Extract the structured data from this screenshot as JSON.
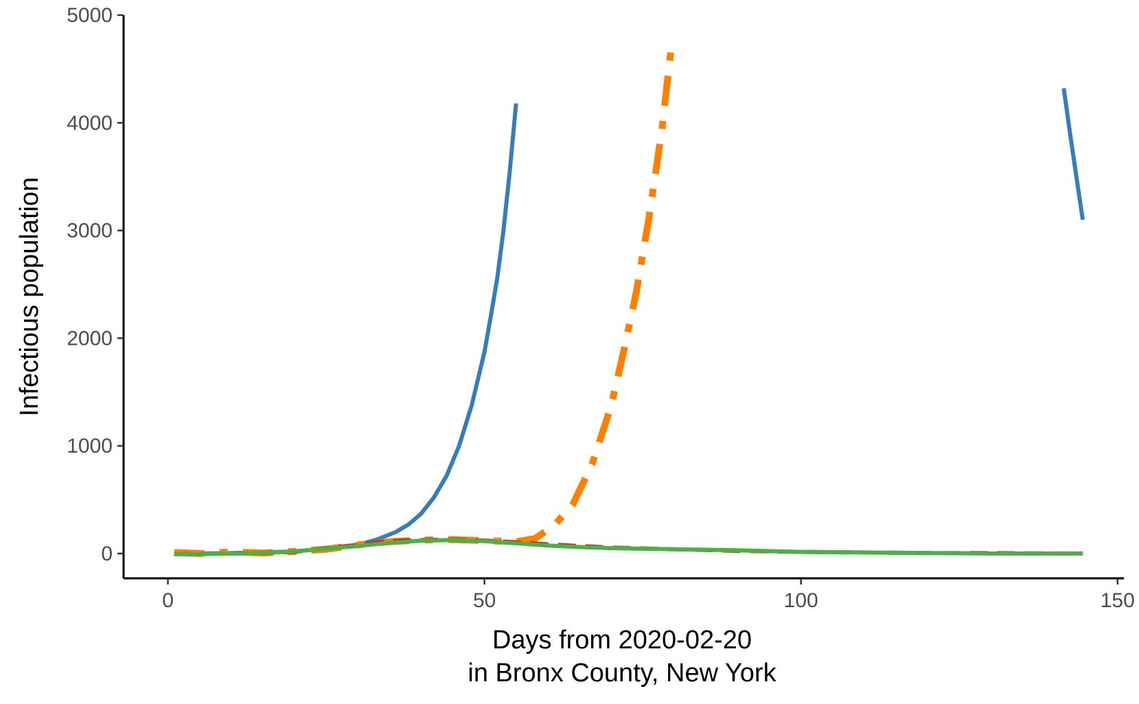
{
  "chart_data": {
    "type": "line",
    "title": "",
    "xlabel_line1": "Days from 2020-02-20",
    "xlabel_line2": "in Bronx County, New York",
    "ylabel": "Infectious population",
    "xlim": [
      -7,
      151
    ],
    "ylim": [
      -230,
      5000
    ],
    "x_ticks": [
      0,
      50,
      100,
      150
    ],
    "y_ticks": [
      0,
      1000,
      2000,
      3000,
      4000,
      5000
    ],
    "grid": false,
    "legend": "none",
    "series": [
      {
        "color": "#377EB8",
        "dash": "solid",
        "segments": [
          {
            "x": [
              1,
              5,
              10,
              15,
              20,
              25,
              30,
              33,
              36,
              38,
              40,
              42,
              44,
              46,
              48,
              50,
              51,
              52,
              53,
              54,
              55
            ],
            "y": [
              -5,
              0,
              5,
              10,
              20,
              45,
              80,
              130,
              200,
              270,
              370,
              520,
              720,
              1000,
              1380,
              1870,
              2200,
              2550,
              3000,
              3550,
              4180
            ]
          },
          {
            "x": [
              141.5,
              142.5,
              143.5,
              144.5
            ],
            "y": [
              4320,
              3900,
              3500,
              3100
            ]
          }
        ]
      },
      {
        "color": "#FF7F00",
        "dash": "dashdot",
        "segments": [
          {
            "x": [
              1,
              5,
              10,
              15,
              20,
              25,
              30,
              35,
              40,
              45,
              50,
              55,
              58,
              61,
              64,
              67,
              70,
              72,
              74,
              76,
              78,
              79.5
            ],
            "y": [
              10,
              0,
              15,
              5,
              20,
              40,
              80,
              110,
              125,
              130,
              120,
              110,
              140,
              260,
              460,
              830,
              1370,
              1880,
              2430,
              3120,
              3920,
              4700
            ]
          }
        ]
      },
      {
        "color": "#E41A1C",
        "dash": "dashed",
        "segments": [
          {
            "x": [
              1,
              5,
              10,
              15,
              20,
              25,
              30,
              35,
              40,
              45,
              50,
              55,
              60,
              65,
              70,
              80,
              90,
              100,
              110,
              120,
              130,
              140,
              144.5
            ],
            "y": [
              -5,
              -5,
              0,
              5,
              15,
              50,
              80,
              115,
              125,
              130,
              120,
              105,
              85,
              70,
              55,
              40,
              25,
              15,
              10,
              5,
              5,
              0,
              0
            ]
          }
        ]
      },
      {
        "color": "#4DAF4A",
        "dash": "solid",
        "segments": [
          {
            "x": [
              1,
              5,
              10,
              15,
              20,
              25,
              30,
              35,
              40,
              45,
              50,
              55,
              60,
              65,
              70,
              80,
              90,
              100,
              110,
              120,
              130,
              140,
              144.5
            ],
            "y": [
              -5,
              -5,
              0,
              5,
              20,
              45,
              70,
              100,
              120,
              125,
              115,
              95,
              75,
              60,
              50,
              40,
              30,
              15,
              10,
              5,
              0,
              0,
              0
            ]
          }
        ]
      }
    ]
  }
}
